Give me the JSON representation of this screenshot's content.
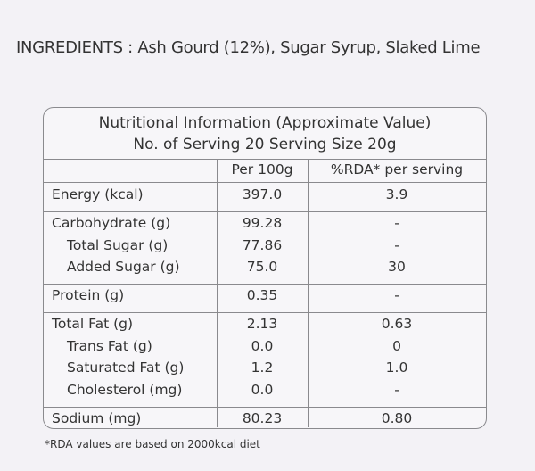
{
  "ingredients": "INGREDIENTS :  Ash Gourd (12%), Sugar Syrup, Slaked Lime",
  "table": {
    "title": "Nutritional Information (Approximate Value)",
    "subtitle": "No. of Serving 20  Serving Size 20g",
    "columns": [
      "Per 100g",
      "%RDA* per serving"
    ],
    "groups": [
      [
        [
          "Energy (kcal)",
          "397.0",
          "3.9"
        ]
      ],
      [
        [
          "Carbohydrate (g)",
          "99.28",
          "-"
        ],
        [
          "Total Sugar (g)",
          "77.86",
          "-"
        ],
        [
          "Added Sugar (g)",
          "75.0",
          "30"
        ]
      ],
      [
        [
          "Protein (g)",
          "0.35",
          "-"
        ]
      ],
      [
        [
          "Total Fat (g)",
          "2.13",
          "0.63"
        ],
        [
          "Trans Fat (g)",
          "0.0",
          "0"
        ],
        [
          "Saturated Fat (g)",
          "1.2",
          "1.0"
        ],
        [
          "Cholesterol (mg)",
          "0.0",
          "-"
        ]
      ],
      [
        [
          "Sodium (mg)",
          "80.23",
          "0.80"
        ]
      ]
    ]
  },
  "footnote": "*RDA values are based on 2000kcal diet"
}
